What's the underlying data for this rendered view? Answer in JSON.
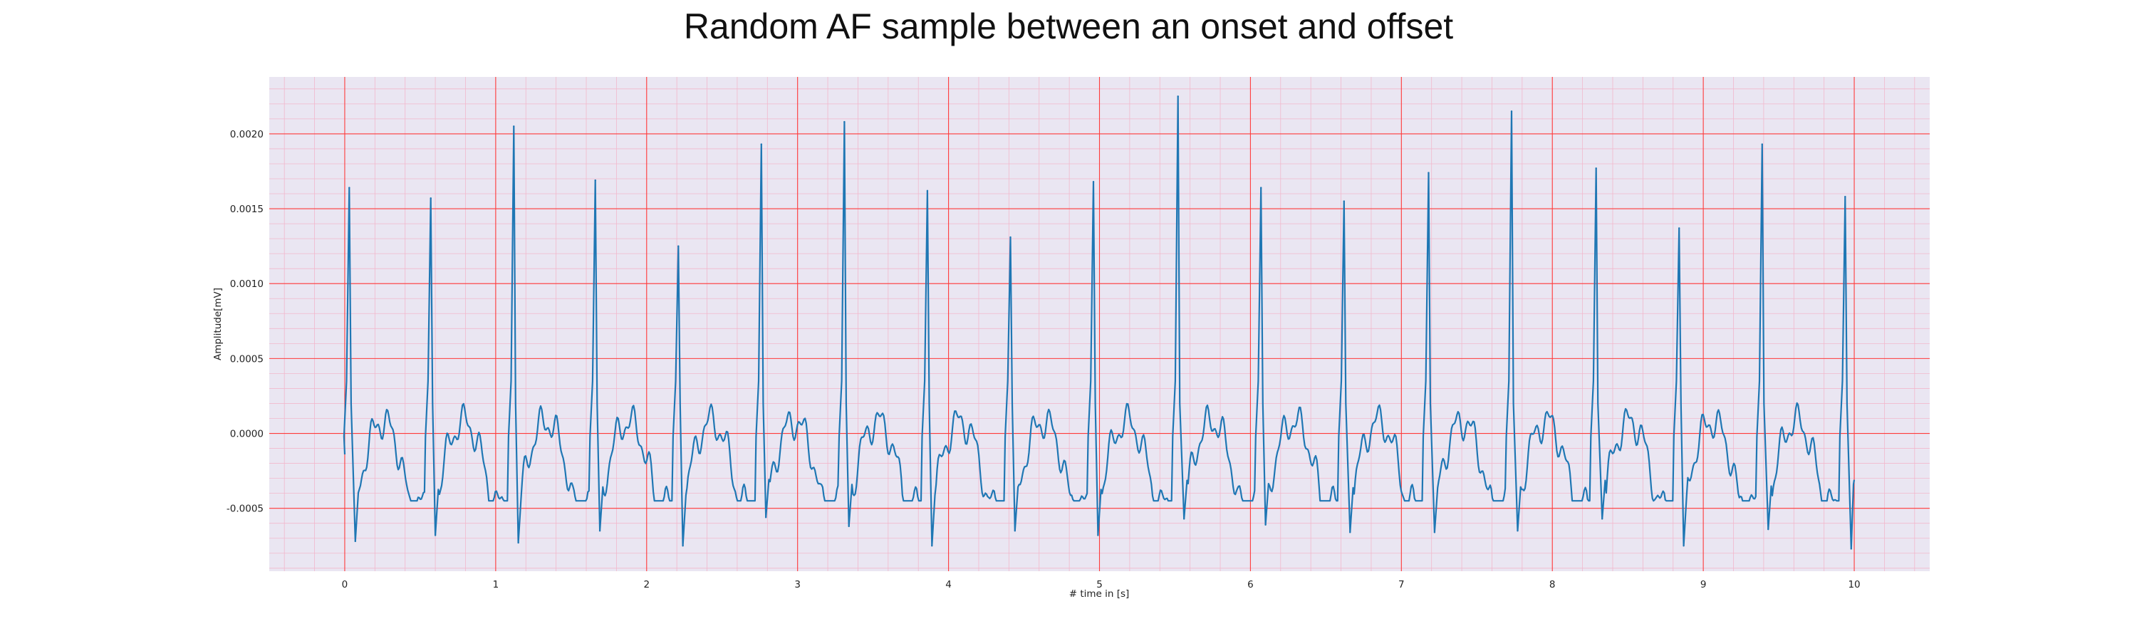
{
  "chart_data": {
    "type": "line",
    "title": "Random AF sample between an onset and offset",
    "xlabel": "# time in [s]",
    "ylabel": "Amplitude[mV]",
    "xlim": [
      -0.5,
      10.5
    ],
    "ylim": [
      -0.00092,
      0.00238
    ],
    "xticks": [
      0,
      1,
      2,
      3,
      4,
      5,
      6,
      7,
      8,
      9,
      10
    ],
    "yticks": [
      -0.0005,
      0.0,
      0.0005,
      0.001,
      0.0015,
      0.002
    ],
    "ytick_labels": [
      "-0.0005",
      "0.0000",
      "0.0005",
      "0.0010",
      "0.0015",
      "0.0020"
    ],
    "grid": true,
    "minor_grid": true,
    "colors": {
      "line": "#1f77b4",
      "plot_background": "#eae6f2",
      "major_grid": "#ff3b3b",
      "minor_grid": "#f2b8cc"
    },
    "series": [
      {
        "peaks": [
          {
            "x": 0.03,
            "y": 0.00164
          },
          {
            "x": 0.57,
            "y": 0.00157
          },
          {
            "x": 1.12,
            "y": 0.00205
          },
          {
            "x": 1.66,
            "y": 0.00169
          },
          {
            "x": 2.21,
            "y": 0.00125
          },
          {
            "x": 2.76,
            "y": 0.00193
          },
          {
            "x": 3.31,
            "y": 0.00208
          },
          {
            "x": 3.86,
            "y": 0.00162
          },
          {
            "x": 4.41,
            "y": 0.00131
          },
          {
            "x": 4.96,
            "y": 0.00168
          },
          {
            "x": 5.52,
            "y": 0.00225
          },
          {
            "x": 6.07,
            "y": 0.00164
          },
          {
            "x": 6.62,
            "y": 0.00155
          },
          {
            "x": 7.18,
            "y": 0.00174
          },
          {
            "x": 7.73,
            "y": 0.00215
          },
          {
            "x": 8.29,
            "y": 0.00177
          },
          {
            "x": 8.84,
            "y": 0.00137
          },
          {
            "x": 9.39,
            "y": 0.00193
          },
          {
            "x": 9.94,
            "y": 0.00158
          }
        ],
        "troughs": [
          {
            "x": 0.07,
            "y": -0.00072
          },
          {
            "x": 0.6,
            "y": -0.00068
          },
          {
            "x": 1.15,
            "y": -0.00073
          },
          {
            "x": 1.69,
            "y": -0.00065
          },
          {
            "x": 2.24,
            "y": -0.00075
          },
          {
            "x": 2.79,
            "y": -0.00056
          },
          {
            "x": 3.34,
            "y": -0.00062
          },
          {
            "x": 3.89,
            "y": -0.00075
          },
          {
            "x": 4.44,
            "y": -0.00065
          },
          {
            "x": 4.99,
            "y": -0.00068
          },
          {
            "x": 5.56,
            "y": -0.00057
          },
          {
            "x": 6.1,
            "y": -0.00061
          },
          {
            "x": 6.66,
            "y": -0.00066
          },
          {
            "x": 7.22,
            "y": -0.00066
          },
          {
            "x": 7.77,
            "y": -0.00065
          },
          {
            "x": 8.33,
            "y": -0.00057
          },
          {
            "x": 8.87,
            "y": -0.00075
          },
          {
            "x": 9.43,
            "y": -0.00064
          },
          {
            "x": 9.98,
            "y": -0.00077
          }
        ],
        "start": {
          "x": 0.0,
          "y": -0.00014
        },
        "end": {
          "x": 10.0,
          "y": -0.00031
        }
      }
    ]
  }
}
